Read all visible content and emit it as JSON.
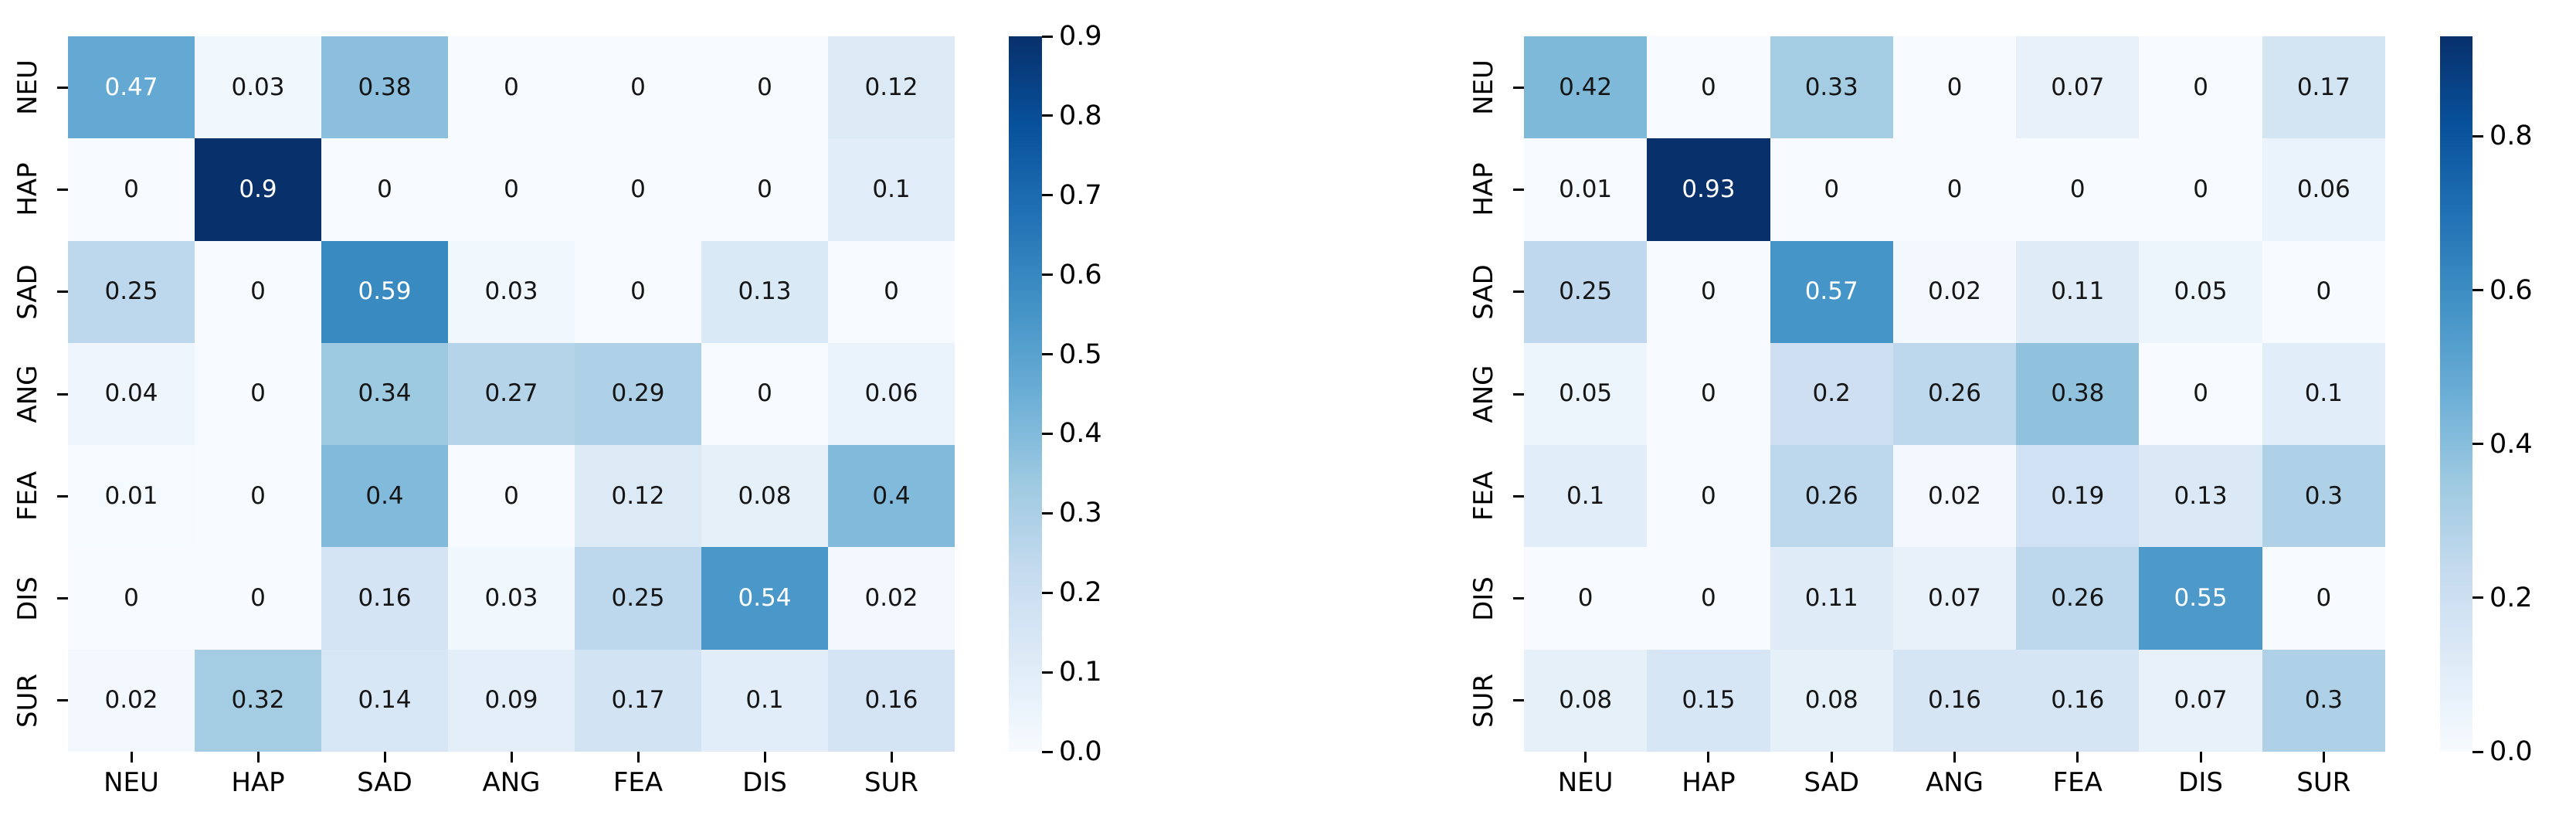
{
  "figure": {
    "background": "#ffffff"
  },
  "colors": {
    "colormap": "Blues",
    "stops": [
      "#f7fbff",
      "#deebf7",
      "#c6dbef",
      "#9ecae1",
      "#6baed6",
      "#4292c6",
      "#2171b5",
      "#08519c",
      "#08306b"
    ],
    "annot_dark": "#151515",
    "annot_light": "#ffffff",
    "axis_text": "#000000"
  },
  "chart_data": [
    {
      "type": "heatmap",
      "name": "left-confusion-matrix",
      "title": "",
      "x_categories": [
        "NEU",
        "HAP",
        "SAD",
        "ANG",
        "FEA",
        "DIS",
        "SUR"
      ],
      "y_categories": [
        "NEU",
        "HAP",
        "SAD",
        "ANG",
        "FEA",
        "DIS",
        "SUR"
      ],
      "rows": [
        [
          0.47,
          0.03,
          0.38,
          0,
          0,
          0,
          0.12
        ],
        [
          0,
          0.9,
          0,
          0,
          0,
          0,
          0.1
        ],
        [
          0.25,
          0,
          0.59,
          0.03,
          0,
          0.13,
          0
        ],
        [
          0.04,
          0,
          0.34,
          0.27,
          0.29,
          0,
          0.06
        ],
        [
          0.01,
          0,
          0.4,
          0,
          0.12,
          0.08,
          0.4
        ],
        [
          0,
          0,
          0.16,
          0.03,
          0.25,
          0.54,
          0.02
        ],
        [
          0.02,
          0.32,
          0.14,
          0.09,
          0.17,
          0.1,
          0.16
        ]
      ],
      "vmin": 0,
      "vmax": 0.9,
      "grid": false,
      "colorbar_position": "right",
      "colorbar_ticks": [
        0.9,
        0.8,
        0.7,
        0.6,
        0.5,
        0.4,
        0.3,
        0.2,
        0.1,
        0.0
      ],
      "colorbar_tick_labels": [
        "0.9",
        "0.8",
        "0.7",
        "0.6",
        "0.5",
        "0.4",
        "0.3",
        "0.2",
        "0.1",
        "0.0"
      ]
    },
    {
      "type": "heatmap",
      "name": "right-confusion-matrix",
      "title": "",
      "x_categories": [
        "NEU",
        "HAP",
        "SAD",
        "ANG",
        "FEA",
        "DIS",
        "SUR"
      ],
      "y_categories": [
        "NEU",
        "HAP",
        "SAD",
        "ANG",
        "FEA",
        "DIS",
        "SUR"
      ],
      "rows": [
        [
          0.42,
          0,
          0.33,
          0,
          0.07,
          0,
          0.17
        ],
        [
          0.01,
          0.93,
          0,
          0,
          0,
          0,
          0.06
        ],
        [
          0.25,
          0,
          0.57,
          0.02,
          0.11,
          0.05,
          0
        ],
        [
          0.05,
          0,
          0.2,
          0.26,
          0.38,
          0,
          0.1
        ],
        [
          0.1,
          0,
          0.26,
          0.02,
          0.19,
          0.13,
          0.3
        ],
        [
          0,
          0,
          0.11,
          0.07,
          0.26,
          0.55,
          0
        ],
        [
          0.08,
          0.15,
          0.08,
          0.16,
          0.16,
          0.07,
          0.3
        ]
      ],
      "vmin": 0,
      "vmax": 0.93,
      "grid": false,
      "colorbar_position": "right",
      "colorbar_ticks": [
        0.8,
        0.6,
        0.4,
        0.2,
        0.0
      ],
      "colorbar_tick_labels": [
        "0.8",
        "0.6",
        "0.4",
        "0.2",
        "0.0"
      ]
    }
  ]
}
